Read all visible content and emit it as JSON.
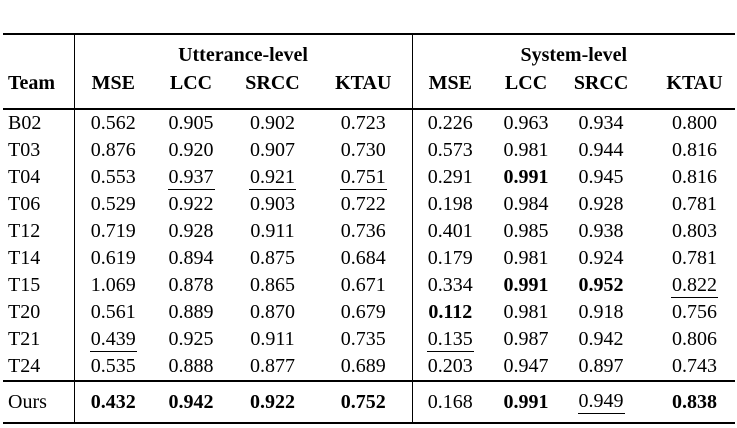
{
  "table": {
    "team_header": "Team",
    "groups": [
      {
        "label": "Utterance-level",
        "columns": [
          "MSE",
          "LCC",
          "SRCC",
          "KTAU"
        ]
      },
      {
        "label": "System-level",
        "columns": [
          "MSE",
          "LCC",
          "SRCC",
          "KTAU"
        ]
      }
    ],
    "style_legend": {
      "b": "bold (best result)",
      "u": "underlined (second best result)"
    },
    "rows": [
      {
        "team": "B02",
        "cells": [
          {
            "v": "0.562"
          },
          {
            "v": "0.905"
          },
          {
            "v": "0.902"
          },
          {
            "v": "0.723"
          },
          {
            "v": "0.226"
          },
          {
            "v": "0.963"
          },
          {
            "v": "0.934"
          },
          {
            "v": "0.800"
          }
        ]
      },
      {
        "team": "T03",
        "cells": [
          {
            "v": "0.876"
          },
          {
            "v": "0.920"
          },
          {
            "v": "0.907"
          },
          {
            "v": "0.730"
          },
          {
            "v": "0.573"
          },
          {
            "v": "0.981"
          },
          {
            "v": "0.944"
          },
          {
            "v": "0.816"
          }
        ]
      },
      {
        "team": "T04",
        "cells": [
          {
            "v": "0.553"
          },
          {
            "v": "0.937",
            "s": "u"
          },
          {
            "v": "0.921",
            "s": "u"
          },
          {
            "v": "0.751",
            "s": "u"
          },
          {
            "v": "0.291"
          },
          {
            "v": "0.991",
            "s": "b"
          },
          {
            "v": "0.945"
          },
          {
            "v": "0.816"
          }
        ]
      },
      {
        "team": "T06",
        "cells": [
          {
            "v": "0.529"
          },
          {
            "v": "0.922"
          },
          {
            "v": "0.903"
          },
          {
            "v": "0.722"
          },
          {
            "v": "0.198"
          },
          {
            "v": "0.984"
          },
          {
            "v": "0.928"
          },
          {
            "v": "0.781"
          }
        ]
      },
      {
        "team": "T12",
        "cells": [
          {
            "v": "0.719"
          },
          {
            "v": "0.928"
          },
          {
            "v": "0.911"
          },
          {
            "v": "0.736"
          },
          {
            "v": "0.401"
          },
          {
            "v": "0.985"
          },
          {
            "v": "0.938"
          },
          {
            "v": "0.803"
          }
        ]
      },
      {
        "team": "T14",
        "cells": [
          {
            "v": "0.619"
          },
          {
            "v": "0.894"
          },
          {
            "v": "0.875"
          },
          {
            "v": "0.684"
          },
          {
            "v": "0.179"
          },
          {
            "v": "0.981"
          },
          {
            "v": "0.924"
          },
          {
            "v": "0.781"
          }
        ]
      },
      {
        "team": "T15",
        "cells": [
          {
            "v": "1.069"
          },
          {
            "v": "0.878"
          },
          {
            "v": "0.865"
          },
          {
            "v": "0.671"
          },
          {
            "v": "0.334"
          },
          {
            "v": "0.991",
            "s": "b"
          },
          {
            "v": "0.952",
            "s": "b"
          },
          {
            "v": "0.822",
            "s": "u"
          }
        ]
      },
      {
        "team": "T20",
        "cells": [
          {
            "v": "0.561"
          },
          {
            "v": "0.889"
          },
          {
            "v": "0.870"
          },
          {
            "v": "0.679"
          },
          {
            "v": "0.112",
            "s": "b"
          },
          {
            "v": "0.981"
          },
          {
            "v": "0.918"
          },
          {
            "v": "0.756"
          }
        ]
      },
      {
        "team": "T21",
        "cells": [
          {
            "v": "0.439",
            "s": "u"
          },
          {
            "v": "0.925"
          },
          {
            "v": "0.911"
          },
          {
            "v": "0.735"
          },
          {
            "v": "0.135",
            "s": "u"
          },
          {
            "v": "0.987"
          },
          {
            "v": "0.942"
          },
          {
            "v": "0.806"
          }
        ]
      },
      {
        "team": "T24",
        "cells": [
          {
            "v": "0.535"
          },
          {
            "v": "0.888"
          },
          {
            "v": "0.877"
          },
          {
            "v": "0.689"
          },
          {
            "v": "0.203"
          },
          {
            "v": "0.947"
          },
          {
            "v": "0.897"
          },
          {
            "v": "0.743"
          }
        ]
      },
      {
        "team": "Ours",
        "ours": true,
        "cells": [
          {
            "v": "0.432",
            "s": "b"
          },
          {
            "v": "0.942",
            "s": "b"
          },
          {
            "v": "0.922",
            "s": "b"
          },
          {
            "v": "0.752",
            "s": "b"
          },
          {
            "v": "0.168"
          },
          {
            "v": "0.991",
            "s": "b"
          },
          {
            "v": "0.949",
            "s": "u"
          },
          {
            "v": "0.838",
            "s": "b"
          }
        ]
      }
    ]
  }
}
